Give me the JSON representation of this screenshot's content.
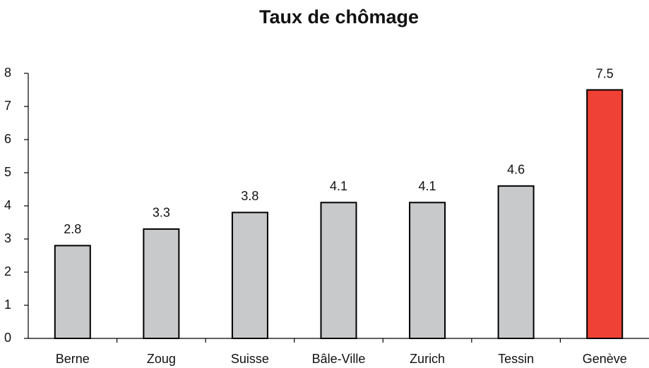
{
  "chart_data": {
    "type": "bar",
    "title": "Taux de chômage",
    "categories": [
      "Berne",
      "Zoug",
      "Suisse",
      "Bâle-Ville",
      "Zurich",
      "Tessin",
      "Genève"
    ],
    "values": [
      2.8,
      3.3,
      3.8,
      4.1,
      4.1,
      4.6,
      7.5
    ],
    "colors": [
      "#c8c9cb",
      "#c8c9cb",
      "#c8c9cb",
      "#c8c9cb",
      "#c8c9cb",
      "#c8c9cb",
      "#ef4136"
    ],
    "ylim": [
      0,
      8
    ],
    "yticks": [
      0,
      1,
      2,
      3,
      4,
      5,
      6,
      7,
      8
    ],
    "grid": false
  }
}
